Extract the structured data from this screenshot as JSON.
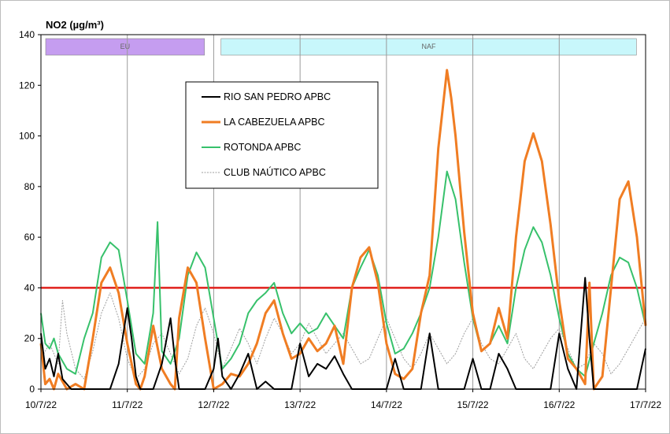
{
  "chart_data": {
    "type": "line",
    "title": "NO2 (µg/m³)",
    "xlabel": "",
    "ylabel": "",
    "ylim": [
      0,
      140
    ],
    "yticks": [
      0,
      20,
      40,
      60,
      80,
      100,
      120,
      140
    ],
    "xlim": [
      0,
      7
    ],
    "xtick_labels": [
      "10/7/22",
      "11/7/22",
      "12/7/22",
      "13/7/22",
      "14/7/22",
      "15/7/22",
      "16/7/22",
      "17/7/22"
    ],
    "grid": "vertical",
    "reference_line": {
      "value": 40,
      "color": "#e0201b"
    },
    "bands": [
      {
        "label": "EU",
        "start": 0,
        "end": 1.93,
        "color": "#c59df0"
      },
      {
        "label": "NAF",
        "start": 2.03,
        "end": 6.93,
        "color": "#c8f7fb"
      }
    ],
    "legend_position": "top-center",
    "series": [
      {
        "name": "RIO SAN PEDRO APBC",
        "color": "#000000",
        "x": [
          0,
          0.05,
          0.1,
          0.15,
          0.2,
          0.25,
          0.3,
          0.35,
          0.4,
          0.45,
          0.5,
          0.6,
          0.7,
          0.8,
          0.9,
          1.0,
          1.05,
          1.1,
          1.15,
          1.2,
          1.3,
          1.4,
          1.5,
          1.55,
          1.6,
          1.65,
          1.7,
          1.8,
          1.9,
          2.0,
          2.05,
          2.1,
          2.2,
          2.3,
          2.4,
          2.5,
          2.6,
          2.7,
          2.8,
          2.9,
          3.0,
          3.1,
          3.2,
          3.3,
          3.4,
          3.5,
          3.6,
          3.7,
          3.8,
          3.9,
          4.0,
          4.1,
          4.2,
          4.3,
          4.4,
          4.5,
          4.6,
          4.7,
          4.8,
          4.9,
          5.0,
          5.1,
          5.2,
          5.3,
          5.4,
          5.5,
          5.6,
          5.7,
          5.8,
          5.9,
          6.0,
          6.05,
          6.1,
          6.2,
          6.3,
          6.35,
          6.4,
          6.5,
          6.6,
          6.7,
          6.8,
          6.9,
          7.0
        ],
        "y": [
          22,
          8,
          12,
          5,
          14,
          4,
          2,
          0,
          0,
          0,
          0,
          0,
          0,
          0,
          10,
          32,
          20,
          5,
          0,
          0,
          0,
          10,
          28,
          12,
          0,
          0,
          0,
          0,
          0,
          8,
          20,
          5,
          0,
          6,
          14,
          0,
          3,
          0,
          0,
          0,
          18,
          5,
          10,
          8,
          13,
          6,
          0,
          0,
          0,
          0,
          0,
          12,
          0,
          0,
          0,
          22,
          0,
          0,
          0,
          0,
          12,
          0,
          0,
          14,
          8,
          0,
          0,
          0,
          0,
          0,
          22,
          15,
          8,
          0,
          44,
          20,
          0,
          0,
          0,
          0,
          0,
          0,
          16
        ]
      },
      {
        "name": "LA CABEZUELA  APBC",
        "color": "#f07d23",
        "x": [
          0,
          0.05,
          0.1,
          0.15,
          0.2,
          0.3,
          0.4,
          0.5,
          0.6,
          0.7,
          0.8,
          0.9,
          1.0,
          1.1,
          1.15,
          1.2,
          1.3,
          1.4,
          1.5,
          1.55,
          1.6,
          1.7,
          1.8,
          1.9,
          2.0,
          2.1,
          2.2,
          2.3,
          2.4,
          2.5,
          2.6,
          2.7,
          2.8,
          2.9,
          3.0,
          3.1,
          3.2,
          3.3,
          3.4,
          3.5,
          3.6,
          3.7,
          3.8,
          3.9,
          4.0,
          4.1,
          4.2,
          4.3,
          4.4,
          4.5,
          4.6,
          4.7,
          4.75,
          4.8,
          4.9,
          5.0,
          5.1,
          5.2,
          5.3,
          5.4,
          5.5,
          5.6,
          5.7,
          5.8,
          5.9,
          6.0,
          6.1,
          6.2,
          6.3,
          6.35,
          6.4,
          6.5,
          6.6,
          6.7,
          6.8,
          6.9,
          7.0
        ],
        "y": [
          18,
          2,
          4,
          0,
          6,
          0,
          2,
          0,
          20,
          42,
          48,
          38,
          18,
          2,
          0,
          5,
          25,
          8,
          2,
          0,
          28,
          48,
          42,
          20,
          0,
          2,
          6,
          5,
          10,
          18,
          30,
          35,
          22,
          12,
          14,
          20,
          15,
          18,
          25,
          10,
          40,
          52,
          56,
          42,
          18,
          6,
          4,
          8,
          30,
          45,
          95,
          126,
          115,
          100,
          62,
          30,
          15,
          18,
          32,
          20,
          60,
          90,
          101,
          90,
          65,
          35,
          12,
          8,
          2,
          42,
          0,
          5,
          40,
          75,
          82,
          60,
          25
        ]
      },
      {
        "name": "ROTONDA  APBC",
        "color": "#37c16b",
        "x": [
          0,
          0.05,
          0.1,
          0.15,
          0.2,
          0.3,
          0.4,
          0.5,
          0.6,
          0.7,
          0.8,
          0.9,
          1.0,
          1.1,
          1.2,
          1.3,
          1.35,
          1.4,
          1.5,
          1.6,
          1.7,
          1.8,
          1.9,
          2.0,
          2.1,
          2.2,
          2.3,
          2.4,
          2.5,
          2.6,
          2.7,
          2.8,
          2.9,
          3.0,
          3.1,
          3.2,
          3.3,
          3.4,
          3.5,
          3.6,
          3.7,
          3.8,
          3.9,
          4.0,
          4.1,
          4.2,
          4.3,
          4.4,
          4.5,
          4.6,
          4.7,
          4.8,
          4.9,
          5.0,
          5.1,
          5.2,
          5.3,
          5.4,
          5.5,
          5.6,
          5.7,
          5.8,
          5.9,
          6.0,
          6.1,
          6.2,
          6.3,
          6.4,
          6.5,
          6.6,
          6.7,
          6.8,
          6.9,
          7.0
        ],
        "y": [
          30,
          18,
          16,
          20,
          14,
          8,
          6,
          20,
          30,
          52,
          58,
          55,
          35,
          14,
          10,
          30,
          66,
          15,
          10,
          20,
          45,
          54,
          48,
          28,
          8,
          12,
          18,
          30,
          35,
          38,
          42,
          30,
          22,
          26,
          22,
          24,
          30,
          25,
          20,
          40,
          48,
          55,
          45,
          26,
          14,
          16,
          22,
          30,
          40,
          60,
          86,
          75,
          50,
          28,
          15,
          18,
          25,
          18,
          40,
          55,
          64,
          58,
          45,
          28,
          14,
          8,
          5,
          18,
          30,
          45,
          52,
          50,
          40,
          25
        ]
      },
      {
        "name": "CLUB NAÚTICO  APBC",
        "color": "#9e9e9e",
        "x": [
          0,
          0.1,
          0.2,
          0.25,
          0.3,
          0.4,
          0.5,
          0.6,
          0.7,
          0.8,
          0.9,
          1.0,
          1.1,
          1.2,
          1.3,
          1.4,
          1.5,
          1.6,
          1.7,
          1.8,
          1.9,
          2.0,
          2.1,
          2.2,
          2.3,
          2.4,
          2.5,
          2.6,
          2.7,
          2.8,
          2.9,
          3.0,
          3.1,
          3.2,
          3.3,
          3.4,
          3.5,
          3.6,
          3.7,
          3.8,
          3.9,
          4.0,
          4.1,
          4.2,
          4.3,
          4.4,
          4.5,
          4.6,
          4.7,
          4.8,
          4.9,
          5.0,
          5.1,
          5.2,
          5.3,
          5.4,
          5.5,
          5.6,
          5.7,
          5.8,
          5.9,
          6.0,
          6.1,
          6.2,
          6.3,
          6.4,
          6.5,
          6.6,
          6.7,
          6.8,
          6.9,
          7.0
        ],
        "y": [
          12,
          18,
          10,
          35,
          22,
          8,
          4,
          15,
          30,
          38,
          28,
          12,
          4,
          8,
          18,
          22,
          14,
          6,
          12,
          25,
          32,
          22,
          8,
          16,
          24,
          18,
          10,
          20,
          28,
          22,
          14,
          18,
          26,
          20,
          14,
          18,
          22,
          16,
          10,
          12,
          20,
          28,
          20,
          12,
          8,
          14,
          22,
          16,
          10,
          14,
          22,
          28,
          18,
          12,
          10,
          16,
          22,
          12,
          8,
          14,
          20,
          24,
          16,
          8,
          10,
          18,
          14,
          6,
          10,
          16,
          22,
          28
        ]
      }
    ]
  }
}
